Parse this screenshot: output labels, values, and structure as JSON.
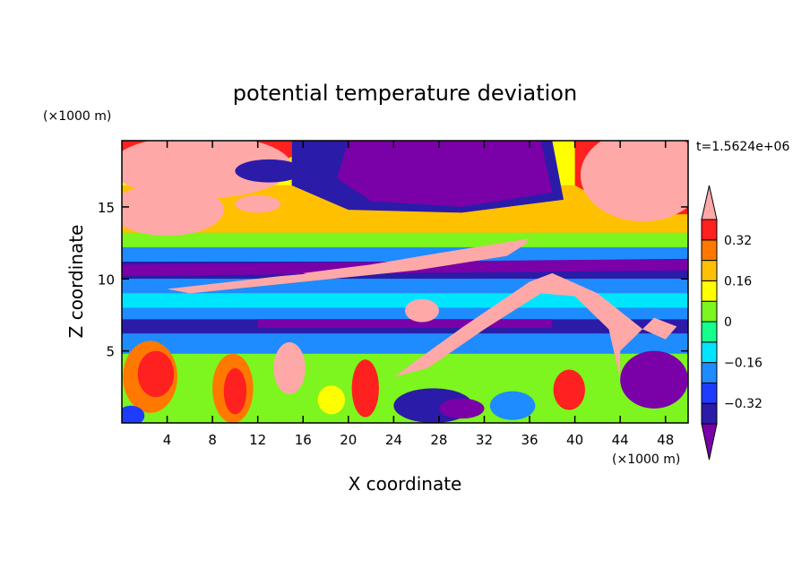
{
  "chart_data": {
    "type": "heatmap",
    "title": "potential temperature deviation",
    "xlabel": "X coordinate",
    "ylabel": "Z coordinate",
    "x_unit": "(×1000 m)",
    "y_unit": "(×1000 m)",
    "time_label": "t=1.5624e+06",
    "xlim": [
      0,
      50
    ],
    "ylim": [
      0,
      19.6
    ],
    "x_ticks": [
      4,
      8,
      12,
      16,
      20,
      24,
      28,
      32,
      36,
      40,
      44,
      48
    ],
    "y_ticks": [
      5,
      10,
      15
    ],
    "x_tick_labels": [
      "4",
      "8",
      "12",
      "16",
      "20",
      "24",
      "28",
      "32",
      "36",
      "40",
      "44",
      "48"
    ],
    "y_tick_labels": [
      "5",
      "10",
      "15"
    ],
    "colorbar": {
      "levels": [
        -0.4,
        -0.32,
        -0.24,
        -0.16,
        -0.08,
        0,
        0.08,
        0.16,
        0.24,
        0.32,
        0.4
      ],
      "tick_labels": [
        "0.32",
        "0.16",
        "0",
        "−0.16",
        "−0.32"
      ],
      "tick_values": [
        0.32,
        0.16,
        0,
        -0.16,
        -0.32
      ],
      "colors": [
        "#7a00a8",
        "#2a1ca8",
        "#1e3cff",
        "#1e8cff",
        "#00e5ff",
        "#14ff8c",
        "#7df51e",
        "#ffff00",
        "#ffc000",
        "#ff7800",
        "#ff2020",
        "#ffa8a8"
      ],
      "extend": "both"
    },
    "field_description": "Layered potential temperature deviation field: warm (pink/red) masses in upper corners and low levels, cold (purple/blue) dome aloft near x=20-36 km and bands around z=7 and z=10-11 km, warm tilted filaments from x=24-50 km."
  }
}
